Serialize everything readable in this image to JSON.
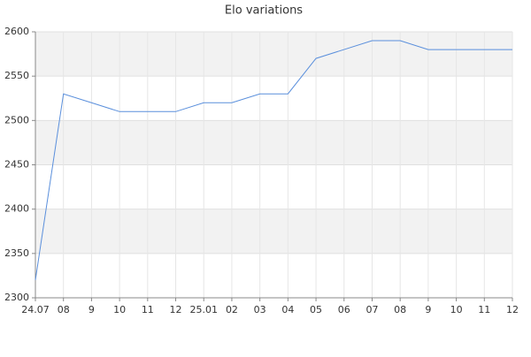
{
  "chart_data": {
    "type": "line",
    "title": "Elo variations",
    "categories": [
      "24.07",
      "08",
      "9",
      "10",
      "11",
      "12",
      "25.01",
      "02",
      "03",
      "04",
      "05",
      "06",
      "07",
      "08",
      "9",
      "10",
      "11",
      "12"
    ],
    "series": [
      {
        "name": "Elo",
        "color": "#5a8fdc",
        "values": [
          2320,
          2530,
          2520,
          2510,
          2510,
          2510,
          2520,
          2520,
          2530,
          2530,
          2570,
          2580,
          2590,
          2590,
          2580,
          2580,
          2580,
          2580
        ]
      }
    ],
    "ylim": [
      2300,
      2600
    ],
    "yticks": [
      2300,
      2350,
      2400,
      2450,
      2500,
      2550,
      2600
    ],
    "grid": true
  }
}
